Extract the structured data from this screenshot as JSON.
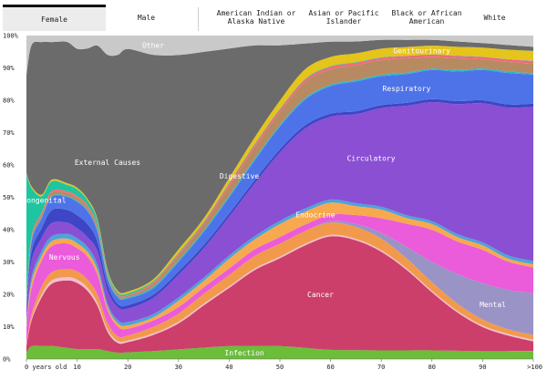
{
  "tabs": {
    "gender": [
      {
        "label": "Female",
        "active": true
      },
      {
        "label": "Male",
        "active": false
      }
    ],
    "race": [
      {
        "label": "American Indian or\nAlaska Native"
      },
      {
        "label": "Asian or Pacific\nIslander"
      },
      {
        "label": "Black or African\nAmerican"
      },
      {
        "label": "White"
      }
    ]
  },
  "chart_data": {
    "type": "area",
    "stacked": true,
    "normalized": true,
    "x": [
      0,
      1,
      3,
      5,
      8,
      10,
      12,
      14,
      16,
      18,
      20,
      25,
      30,
      35,
      40,
      45,
      50,
      55,
      60,
      65,
      70,
      75,
      80,
      85,
      90,
      95,
      100
    ],
    "x_ticks": [
      "0 years old",
      "10",
      "20",
      "30",
      "40",
      "50",
      "60",
      "70",
      "80",
      "90",
      ">100"
    ],
    "y_ticks": [
      "0%",
      "10%",
      "20%",
      "30%",
      "40%",
      "50%",
      "60%",
      "70%",
      "80%",
      "90%",
      "100%"
    ],
    "xlim": [
      0,
      100
    ],
    "ylim": [
      0,
      100
    ],
    "grid": false,
    "series": [
      {
        "name": "Infection",
        "color": "#6bbd3a",
        "values": [
          2,
          4,
          4,
          4,
          3.5,
          3,
          3,
          3,
          2.5,
          2,
          2,
          2.5,
          3,
          3.5,
          4,
          4,
          4,
          3.5,
          3,
          3,
          3,
          3,
          3,
          2.8,
          2.6,
          2.5,
          2.5
        ]
      },
      {
        "name": "Cancer",
        "color": "#cc3f6b",
        "values": [
          2,
          8,
          15,
          19,
          21,
          20,
          18,
          13,
          6,
          3,
          3,
          5,
          8,
          13,
          18,
          23,
          27,
          32,
          37,
          37,
          34,
          28,
          20,
          13,
          8,
          5,
          3
        ]
      },
      {
        "name": "",
        "color": "#f2c0cf",
        "values": [
          0,
          0.5,
          0.8,
          1,
          1,
          1,
          1,
          0.9,
          0.8,
          0.6,
          0.5,
          0.5,
          0.5,
          0.5,
          0.5,
          0.5,
          0.5,
          0.5,
          0.5,
          0.5,
          0.5,
          0.5,
          0.5,
          0.5,
          0.5,
          0.5,
          0.5
        ]
      },
      {
        "name": "",
        "color": "#f29a4c",
        "values": [
          0.5,
          1.5,
          2.5,
          2.5,
          2.5,
          2.5,
          2.5,
          2.5,
          2,
          1.5,
          1.5,
          2,
          2.5,
          3,
          3.5,
          3.8,
          4,
          4,
          4,
          4,
          4,
          3.5,
          3,
          2.5,
          2,
          1.5,
          1.5
        ]
      },
      {
        "name": "Mental",
        "color": "#9a93c6",
        "values": [
          0,
          0,
          0,
          0,
          0,
          0,
          0,
          0,
          0,
          0,
          0,
          0,
          0,
          0,
          0,
          0,
          0,
          0,
          0.5,
          1,
          2,
          4,
          7,
          10,
          12,
          12.5,
          13
        ]
      },
      {
        "name": "Nervous",
        "color": "#ea5cd9",
        "values": [
          5,
          8,
          8,
          8,
          8,
          7,
          7,
          6,
          4,
          3,
          2,
          2,
          2,
          2,
          2,
          2,
          2,
          2,
          2,
          3,
          5,
          8,
          11,
          11,
          11,
          9,
          8
        ]
      },
      {
        "name": "Endocrine",
        "color": "#f8a84f",
        "values": [
          1,
          2,
          1.5,
          1.5,
          1.5,
          1.5,
          1.5,
          1.5,
          1,
          1,
          1,
          1,
          2,
          2,
          3,
          3,
          4,
          4,
          4,
          3,
          3,
          2,
          2,
          1.5,
          1.5,
          1,
          1
        ]
      },
      {
        "name": "",
        "color": "#4ea3d8",
        "values": [
          1,
          1.5,
          1.5,
          1.5,
          1.5,
          1.5,
          1.5,
          1.5,
          1,
          1,
          1,
          1,
          1,
          1,
          1,
          1,
          1,
          1,
          1,
          1,
          1,
          1,
          1,
          1,
          1,
          1,
          1
        ]
      },
      {
        "name": "Circulatory",
        "color": "#8a4fd3",
        "values": [
          4,
          5,
          4,
          4,
          3.5,
          3,
          3,
          4,
          4,
          4,
          4,
          5,
          7,
          9,
          12,
          16,
          21,
          25,
          27,
          30,
          34,
          38,
          41,
          44,
          46,
          47,
          48
        ]
      },
      {
        "name": "",
        "color": "#3e46c6",
        "values": [
          1,
          3,
          3,
          4,
          4,
          4,
          4,
          3,
          2,
          1,
          1,
          1,
          1,
          1,
          1,
          1,
          1,
          1,
          1,
          1,
          1,
          1,
          1,
          1,
          1,
          1,
          1
        ]
      },
      {
        "name": "Respiratory",
        "color": "#4e73e8",
        "values": [
          1,
          3,
          3,
          4,
          4,
          4,
          4,
          3,
          2,
          2,
          2,
          2,
          3,
          4,
          5,
          6,
          7,
          8,
          9,
          10,
          10,
          10,
          10,
          10,
          10,
          10,
          9
        ]
      },
      {
        "name": "",
        "color": "#2bb6c6",
        "values": [
          0.2,
          0.3,
          0.3,
          0.3,
          0.3,
          0.3,
          0.3,
          0.3,
          0.3,
          0.3,
          0.3,
          0.5,
          0.5,
          0.5,
          0.5,
          0.5,
          0.5,
          0.5,
          0.5,
          0.5,
          0.5,
          0.5,
          0.5,
          0.5,
          0.5,
          0.5,
          0.5
        ]
      },
      {
        "name": "Digestive",
        "color": "#b88a62",
        "values": [
          0.5,
          1,
          1,
          1,
          1,
          1,
          1,
          1,
          0.5,
          0.5,
          0.5,
          1,
          1.5,
          2,
          3,
          3.5,
          4,
          5,
          5,
          5,
          5,
          5,
          4,
          4,
          3,
          3,
          3
        ]
      },
      {
        "name": "",
        "color": "#f06b7a",
        "values": [
          0.2,
          0.5,
          0.5,
          0.5,
          0.5,
          0.5,
          0.5,
          0.5,
          0.3,
          0.3,
          0.2,
          0.5,
          0.5,
          0.5,
          0.8,
          0.8,
          0.8,
          0.8,
          0.8,
          0.8,
          0.8,
          0.8,
          0.8,
          0.8,
          0.8,
          0.8,
          0.8
        ]
      },
      {
        "name": "Congenital",
        "color": "#1fc4a0",
        "values": [
          38,
          15,
          5,
          3,
          2,
          2,
          1.5,
          1.5,
          1,
          0.5,
          0.5,
          0.3,
          0.3,
          0.2,
          0.2,
          0.2,
          0.2,
          0.2,
          0.2,
          0.2,
          0.2,
          0.1,
          0.1,
          0.1,
          0.1,
          0.1,
          0.1
        ]
      },
      {
        "name": "Genitourinary",
        "color": "#e5c41b",
        "values": [
          0.3,
          0.5,
          0.5,
          0.5,
          0.5,
          0.5,
          0.5,
          0.5,
          0.5,
          0.5,
          0.5,
          0.5,
          1,
          1,
          1.5,
          2,
          2.5,
          3,
          3,
          3,
          3,
          3,
          3,
          3,
          3,
          3,
          3
        ]
      },
      {
        "name": "External Causes",
        "color": "#6b6b6b",
        "values": [
          30,
          44,
          47,
          42,
          44,
          42,
          46,
          52,
          67,
          73,
          72,
          70,
          60,
          51,
          40,
          28,
          17,
          8,
          5,
          4,
          3,
          2.5,
          2,
          1.8,
          1.5,
          1.5,
          1.3
        ]
      },
      {
        "name": "Other",
        "color": "#c9c9c9",
        "values": [
          12,
          3,
          2,
          2,
          2,
          4,
          4,
          3,
          6,
          6,
          4,
          6,
          6,
          5,
          4,
          3,
          3,
          2.5,
          2,
          2,
          1.5,
          1.5,
          1.5,
          2,
          2.5,
          3,
          3.5
        ]
      }
    ]
  }
}
